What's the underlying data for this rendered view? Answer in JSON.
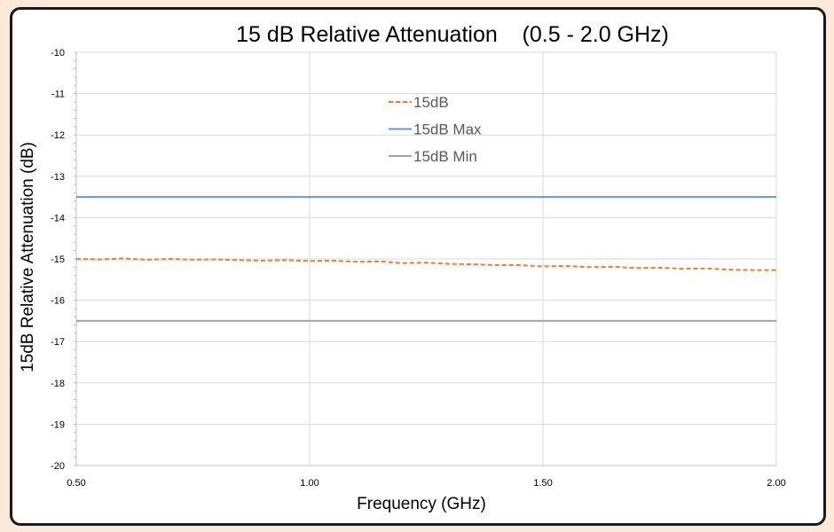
{
  "chart_data": {
    "type": "line",
    "title": "15 dB Relative Attenuation    (0.5 - 2.0 GHz)",
    "xlabel": "Frequency (GHz)",
    "ylabel": "15dB Relative Attenuation (dB)",
    "xlim": [
      0.5,
      2.0
    ],
    "ylim": [
      -20,
      -10
    ],
    "x_ticks": [
      "0.50",
      "1.00",
      "1.50",
      "2.00"
    ],
    "x_tick_values": [
      0.5,
      1.0,
      1.5,
      2.0
    ],
    "y_ticks": [
      "-10",
      "-11",
      "-12",
      "-13",
      "-14",
      "-15",
      "-16",
      "-17",
      "-18",
      "-19",
      "-20"
    ],
    "y_tick_values": [
      -10,
      -11,
      -12,
      -13,
      -14,
      -15,
      -16,
      -17,
      -18,
      -19,
      -20
    ],
    "grid": true,
    "legend_position": "top-center",
    "series": [
      {
        "name": "15dB",
        "color": "#ed7d31",
        "style": "dashed",
        "x": [
          0.5,
          0.55,
          0.6,
          0.65,
          0.7,
          0.75,
          0.8,
          0.85,
          0.9,
          0.95,
          1.0,
          1.05,
          1.1,
          1.15,
          1.2,
          1.25,
          1.3,
          1.35,
          1.4,
          1.45,
          1.5,
          1.55,
          1.6,
          1.65,
          1.7,
          1.75,
          1.8,
          1.85,
          1.9,
          1.95,
          2.0
        ],
        "y": [
          -15.0,
          -15.01,
          -14.99,
          -15.02,
          -15.0,
          -15.02,
          -15.01,
          -15.03,
          -15.04,
          -15.03,
          -15.05,
          -15.04,
          -15.07,
          -15.06,
          -15.1,
          -15.09,
          -15.12,
          -15.13,
          -15.15,
          -15.15,
          -15.18,
          -15.17,
          -15.2,
          -15.19,
          -15.22,
          -15.21,
          -15.24,
          -15.23,
          -15.26,
          -15.27,
          -15.27
        ]
      },
      {
        "name": "15dB Max",
        "color": "#5b9bd5",
        "style": "solid",
        "x": [
          0.5,
          2.0
        ],
        "y": [
          -13.5,
          -13.5
        ]
      },
      {
        "name": "15dB Min",
        "color": "#a5a5a5",
        "style": "solid",
        "x": [
          0.5,
          2.0
        ],
        "y": [
          -16.5,
          -16.5
        ]
      }
    ]
  }
}
